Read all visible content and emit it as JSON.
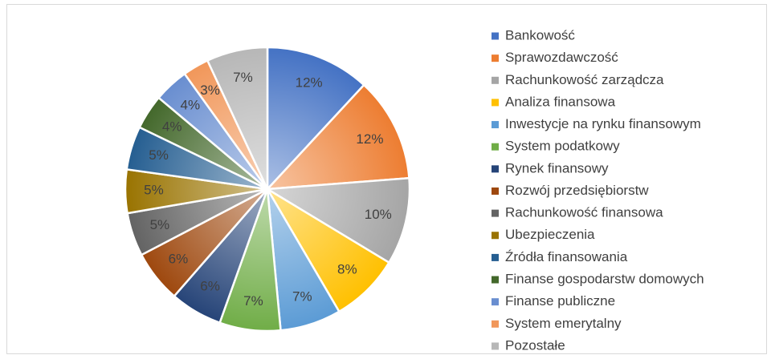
{
  "chart_data": {
    "type": "pie",
    "categories": [
      "Bankowość",
      "Sprawozdawczość",
      "Rachunkowość zarządcza",
      "Analiza finansowa",
      "Inwestycje na rynku finansowym",
      "System podatkowy",
      "Rynek finansowy",
      "Rozwój przedsiębiorstw",
      "Rachunkowość finansowa",
      "Ubezpieczenia",
      "Źródła finansowania",
      "Finanse gospodarstw domowych",
      "Finanse publiczne",
      "System emerytalny",
      "Pozostałe"
    ],
    "values": [
      12,
      12,
      10,
      8,
      7,
      7,
      6,
      6,
      5,
      5,
      5,
      4,
      4,
      3,
      7
    ],
    "value_labels": [
      "12%",
      "12%",
      "10%",
      "8%",
      "7%",
      "7%",
      "6%",
      "6%",
      "5%",
      "5%",
      "5%",
      "4%",
      "4%",
      "3%",
      "7%"
    ],
    "colors": [
      "#4472c4",
      "#ed7d31",
      "#a5a5a5",
      "#ffc000",
      "#5b9bd5",
      "#70ad47",
      "#264478",
      "#9e480e",
      "#636363",
      "#997300",
      "#255e91",
      "#43682b",
      "#698ed0",
      "#f1975a",
      "#b7b7b7"
    ],
    "legend": "right"
  }
}
